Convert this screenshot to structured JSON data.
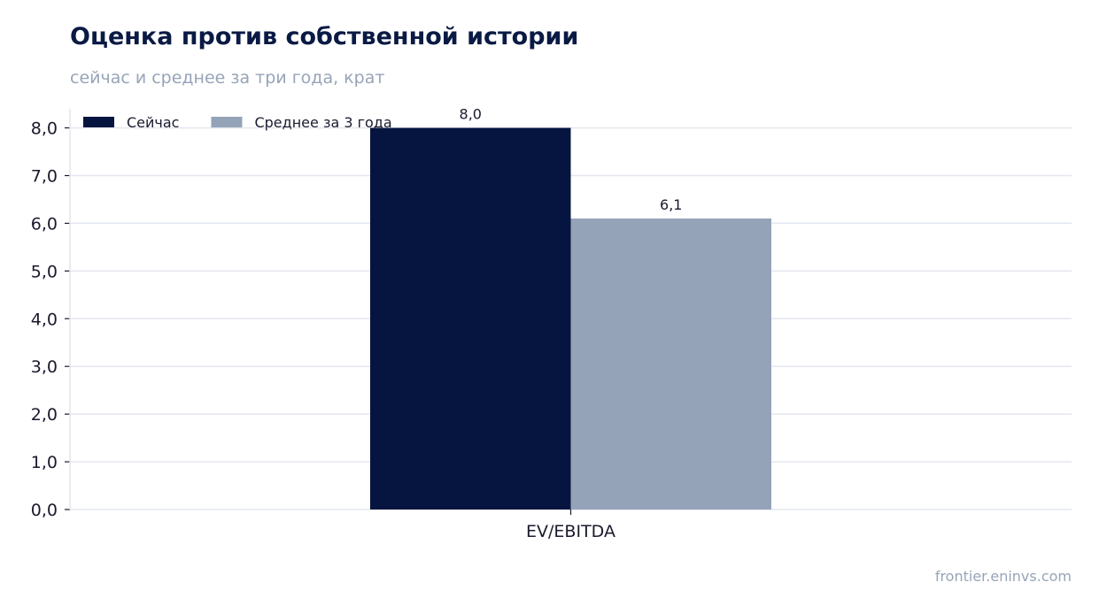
{
  "title": "Оценка против собственной истории",
  "subtitle": "сейчас и среднее за три года, крат",
  "source": "frontier.eninvs.com",
  "colors": {
    "now": "#06153f",
    "avg": "#95a3b8",
    "grid": "#e3e6ee",
    "axis": "#1a1a2e"
  },
  "chart_data": {
    "type": "bar",
    "categories": [
      "EV/EBITDA"
    ],
    "series": [
      {
        "name": "Сейчас",
        "values": [
          8.0
        ],
        "labels": [
          "8,0"
        ]
      },
      {
        "name": "Среднее за 3 года",
        "values": [
          6.1
        ],
        "labels": [
          "6,1"
        ]
      }
    ],
    "ylim": [
      0,
      8.4
    ],
    "yticks": [
      0,
      1,
      2,
      3,
      4,
      5,
      6,
      7,
      8
    ],
    "ytick_labels": [
      "0,0",
      "1,0",
      "2,0",
      "3,0",
      "4,0",
      "5,0",
      "6,0",
      "7,0",
      "8,0"
    ],
    "grid": true,
    "legend": "top-left"
  }
}
